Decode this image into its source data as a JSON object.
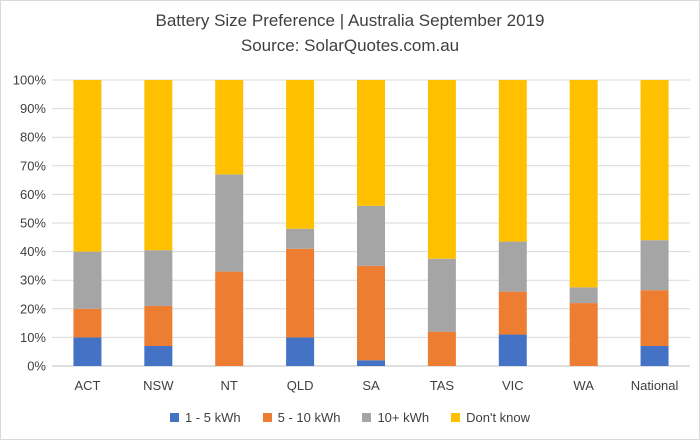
{
  "chart_data": {
    "type": "bar",
    "stacked": true,
    "title": "Battery Size Preference  | Australia September 2019",
    "subtitle": "Source: SolarQuotes.com.au",
    "categories": [
      "ACT",
      "NSW",
      "NT",
      "QLD",
      "SA",
      "TAS",
      "VIC",
      "WA",
      "National"
    ],
    "series": [
      {
        "name": "1 - 5 kWh",
        "color": "#4472c4",
        "values": [
          10,
          7,
          0,
          10,
          2,
          0,
          11,
          0,
          7
        ]
      },
      {
        "name": "5 - 10 kWh",
        "color": "#ed7d31",
        "values": [
          10,
          14,
          33,
          31,
          33,
          12,
          15,
          22,
          19.5
        ]
      },
      {
        "name": "10+ kWh",
        "color": "#a5a5a5",
        "values": [
          20,
          19.5,
          34,
          7,
          21,
          25.5,
          17.5,
          5.5,
          17.5
        ]
      },
      {
        "name": "Don't know",
        "color": "#ffc000",
        "values": [
          60,
          59.5,
          33,
          52,
          44,
          62.5,
          56.5,
          72.5,
          56
        ]
      }
    ],
    "ylim": [
      0,
      100
    ],
    "yticks": [
      "0%",
      "10%",
      "20%",
      "30%",
      "40%",
      "50%",
      "60%",
      "70%",
      "80%",
      "90%",
      "100%"
    ],
    "grid": true,
    "legend_position": "bottom"
  }
}
